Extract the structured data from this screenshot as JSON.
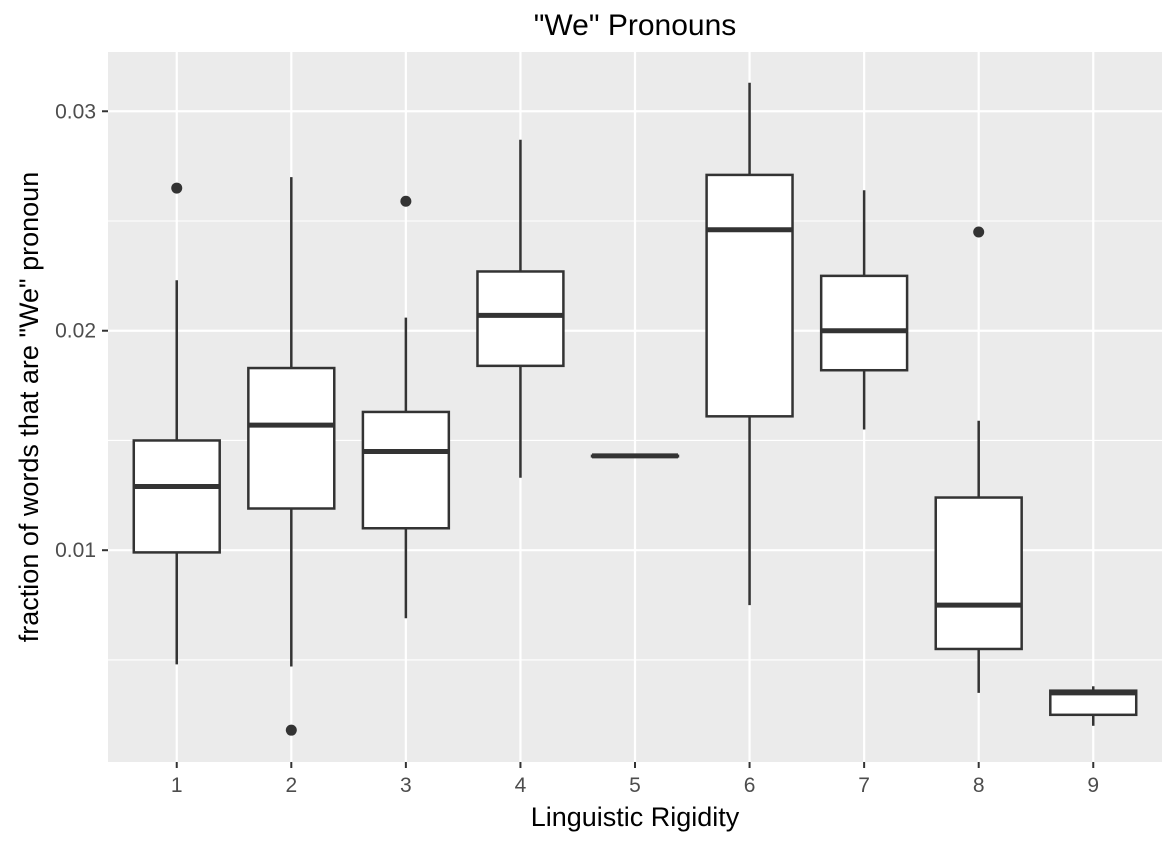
{
  "chart_data": {
    "type": "boxplot",
    "title": "\"We\" Pronouns",
    "xlabel": "Linguistic Rigidity",
    "ylabel": "fraction of words that are \"We\" pronoun",
    "categories": [
      "1",
      "2",
      "3",
      "4",
      "5",
      "6",
      "7",
      "8",
      "9"
    ],
    "ylim": [
      0.00035,
      0.0327
    ],
    "yticks": [
      0.01,
      0.02,
      0.03
    ],
    "ytick_labels": [
      "0.01",
      "0.02",
      "0.03"
    ],
    "grid": true,
    "boxes": [
      {
        "category": "1",
        "whisker_low": 0.0048,
        "q1": 0.0099,
        "median": 0.0129,
        "q3": 0.015,
        "whisker_high": 0.0223,
        "outliers": [
          0.0265
        ]
      },
      {
        "category": "2",
        "whisker_low": 0.0047,
        "q1": 0.0119,
        "median": 0.0157,
        "q3": 0.0183,
        "whisker_high": 0.027,
        "outliers": [
          0.0018
        ]
      },
      {
        "category": "3",
        "whisker_low": 0.0069,
        "q1": 0.011,
        "median": 0.0145,
        "q3": 0.0163,
        "whisker_high": 0.0206,
        "outliers": [
          0.0259
        ]
      },
      {
        "category": "4",
        "whisker_low": 0.0133,
        "q1": 0.0184,
        "median": 0.0207,
        "q3": 0.0227,
        "whisker_high": 0.0287,
        "outliers": []
      },
      {
        "category": "5",
        "whisker_low": 0.0143,
        "q1": 0.0143,
        "median": 0.0143,
        "q3": 0.0143,
        "whisker_high": 0.0143,
        "outliers": []
      },
      {
        "category": "6",
        "whisker_low": 0.0075,
        "q1": 0.0161,
        "median": 0.0246,
        "q3": 0.0271,
        "whisker_high": 0.0313,
        "outliers": []
      },
      {
        "category": "7",
        "whisker_low": 0.0155,
        "q1": 0.0182,
        "median": 0.02,
        "q3": 0.0225,
        "whisker_high": 0.0264,
        "outliers": []
      },
      {
        "category": "8",
        "whisker_low": 0.0035,
        "q1": 0.0055,
        "median": 0.0075,
        "q3": 0.0124,
        "whisker_high": 0.0159,
        "outliers": [
          0.0245
        ]
      },
      {
        "category": "9",
        "whisker_low": 0.002,
        "q1": 0.0025,
        "median": 0.0035,
        "q3": 0.0036,
        "whisker_high": 0.0038,
        "outliers": []
      }
    ],
    "colors": {
      "panel_background": "#ebebeb",
      "grid_major": "#ffffff",
      "box_fill": "#ffffff",
      "box_stroke": "#333333",
      "tick_label": "#4d4d4d",
      "axis_title": "#000000"
    }
  }
}
